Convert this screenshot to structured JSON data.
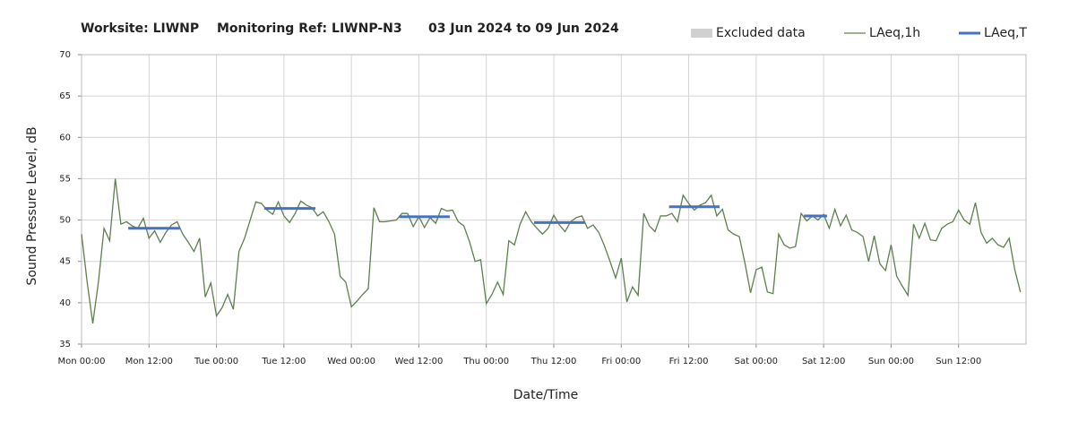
{
  "chart_data": {
    "type": "line",
    "title": [
      "Worksite: LIWNP",
      "Monitoring Ref: LIWNP-N3",
      "03 Jun 2024 to 09 Jun 2024"
    ],
    "y_label": "Sound Pressure Level, dB",
    "x_label": "Date/Time",
    "xlim": [
      0,
      168
    ],
    "xticks": [
      {
        "value": 0,
        "label": "Mon 00:00"
      },
      {
        "value": 12,
        "label": "Mon 12:00"
      },
      {
        "value": 24,
        "label": "Tue 00:00"
      },
      {
        "value": 36,
        "label": "Tue 12:00"
      },
      {
        "value": 48,
        "label": "Wed 00:00"
      },
      {
        "value": 60,
        "label": "Wed 12:00"
      },
      {
        "value": 72,
        "label": "Thu 00:00"
      },
      {
        "value": 84,
        "label": "Thu 12:00"
      },
      {
        "value": 96,
        "label": "Fri 00:00"
      },
      {
        "value": 108,
        "label": "Fri 12:00"
      },
      {
        "value": 120,
        "label": "Sat 00:00"
      },
      {
        "value": 132,
        "label": "Sat 12:00"
      },
      {
        "value": 144,
        "label": "Sun 00:00"
      },
      {
        "value": 156,
        "label": "Sun 12:00"
      }
    ],
    "ylim": [
      35,
      70
    ],
    "yticks": [
      35,
      40,
      45,
      50,
      55,
      60,
      65,
      70
    ],
    "grid": true,
    "legend": "top-right",
    "series": [
      {
        "name": "Excluded data",
        "color": "#d0d0d0",
        "kind": "area",
        "values": []
      },
      {
        "name": "LAeq,1h",
        "color": "#5f7f4f",
        "kind": "line",
        "x": [
          0,
          1,
          2,
          3,
          4,
          5,
          6,
          7,
          8,
          9,
          10,
          11,
          12,
          13,
          14,
          15,
          16,
          17,
          18,
          19,
          20,
          21,
          22,
          23,
          24,
          25,
          26,
          27,
          28,
          29,
          30,
          31,
          32,
          33,
          34,
          35,
          36,
          37,
          38,
          39,
          40,
          41,
          42,
          43,
          44,
          45,
          46,
          47,
          48,
          49,
          50,
          51,
          52,
          53,
          54,
          55,
          56,
          57,
          58,
          59,
          60,
          61,
          62,
          63,
          64,
          65,
          66,
          67,
          68,
          69,
          70,
          71,
          72,
          73,
          74,
          75,
          76,
          77,
          78,
          79,
          80,
          81,
          82,
          83,
          84,
          85,
          86,
          87,
          88,
          89,
          90,
          91,
          92,
          93,
          94,
          95,
          96,
          97,
          98,
          99,
          100,
          101,
          102,
          103,
          104,
          105,
          106,
          107,
          108,
          109,
          110,
          111,
          112,
          113,
          114,
          115,
          116,
          117,
          118,
          119,
          120,
          121,
          122,
          123,
          124,
          125,
          126,
          127,
          128,
          129,
          130,
          131,
          132,
          133,
          134,
          135,
          136,
          137,
          138,
          139,
          140,
          141,
          142,
          143,
          144,
          145,
          146,
          147,
          148,
          149,
          150,
          151,
          152,
          153,
          154,
          155,
          156,
          157,
          158,
          159,
          160,
          161,
          162,
          163,
          164,
          165,
          166,
          167
        ],
        "values": [
          48.3,
          42.5,
          37.5,
          42.5,
          49,
          47.5,
          55,
          49.5,
          49.8,
          49.3,
          49,
          50.2,
          47.8,
          48.7,
          47.3,
          48.5,
          49.4,
          49.8,
          48.3,
          47.3,
          46.2,
          47.8,
          40.7,
          42.4,
          38.4,
          39.4,
          41,
          39.2,
          46.2,
          47.8,
          50,
          52.2,
          52,
          51.2,
          50.7,
          52.2,
          50.5,
          49.7,
          50.8,
          52.3,
          51.8,
          51.5,
          50.5,
          51,
          49.8,
          48.3,
          43.2,
          42.5,
          39.5,
          40.2,
          41,
          41.7,
          51.5,
          49.8,
          49.8,
          49.9,
          50,
          50.8,
          50.8,
          49.2,
          50.4,
          49.1,
          50.3,
          49.6,
          51.4,
          51.1,
          51.2,
          49.8,
          49.3,
          47.4,
          45,
          45.2,
          39.9,
          41,
          42.5,
          41,
          47.5,
          47,
          49.5,
          51,
          49.8,
          49,
          48.3,
          49,
          50.6,
          49.4,
          48.6,
          49.8,
          50.3,
          50.5,
          49,
          49.4,
          48.5,
          46.9,
          45,
          43,
          45.4,
          40.1,
          41.9,
          40.9,
          50.8,
          49.3,
          48.6,
          50.5,
          50.5,
          50.8,
          49.8,
          53,
          52,
          51.2,
          51.8,
          52.1,
          53,
          50.5,
          51.3,
          48.8,
          48.3,
          48,
          44.8,
          41.2,
          44,
          44.3,
          41.3,
          41.1,
          48.3,
          47,
          46.6,
          46.8,
          50.8,
          49.9,
          50.5,
          50,
          50.7,
          49,
          51.3,
          49.3,
          50.6,
          48.8,
          48.5,
          48,
          45,
          48.1,
          44.7,
          43.9,
          47,
          43.2,
          42,
          40.9,
          49.5,
          47.8,
          49.6,
          47.6,
          47.5,
          49,
          49.5,
          49.8,
          51.2,
          50,
          49.5,
          52.1,
          48.5,
          47.2,
          47.8,
          47,
          46.7,
          47.8,
          44,
          41.3
        ]
      },
      {
        "name": "LAeq,T",
        "color": "#4472c4",
        "kind": "segments",
        "x_start": [
          8.3,
          32.5,
          56.5,
          80.5,
          104.5,
          128.5
        ],
        "x_end": [
          17.5,
          41.6,
          65.5,
          89.5,
          113.5,
          132.6
        ],
        "values": [
          49,
          51.4,
          50.4,
          49.7,
          51.6,
          50.5
        ]
      }
    ]
  }
}
